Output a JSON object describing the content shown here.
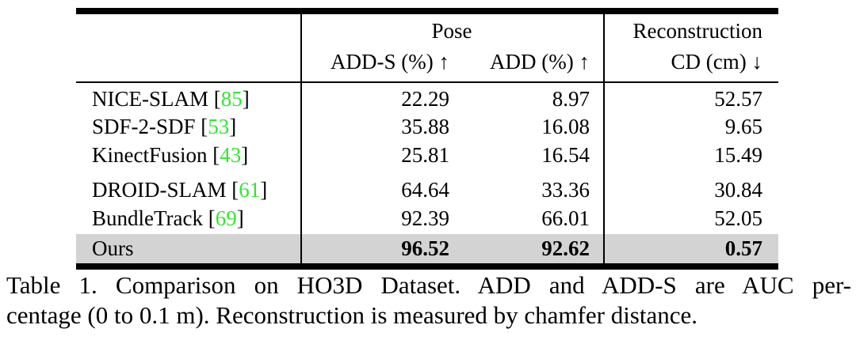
{
  "table": {
    "header": {
      "group_pose": "Pose",
      "group_recon": "Reconstruction",
      "col_adds": "ADD-S (%) ↑",
      "col_add": "ADD (%) ↑",
      "col_cd": "CD (cm) ↓"
    },
    "rows": [
      {
        "method": "NICE-SLAM",
        "ref": "85",
        "adds": "22.29",
        "add": "8.97",
        "cd": "52.57"
      },
      {
        "method": "SDF-2-SDF",
        "ref": "53",
        "adds": "35.88",
        "add": "16.08",
        "cd": "9.65"
      },
      {
        "method": "KinectFusion",
        "ref": "43",
        "adds": "25.81",
        "add": "16.54",
        "cd": "15.49"
      },
      {
        "method": "DROID-SLAM",
        "ref": "61",
        "adds": "64.64",
        "add": "33.36",
        "cd": "30.84"
      },
      {
        "method": "BundleTrack",
        "ref": "69",
        "adds": "92.39",
        "add": "66.01",
        "cd": "52.05"
      }
    ],
    "ours": {
      "method": "Ours",
      "adds": "96.52",
      "add": "92.62",
      "cd": "0.57"
    }
  },
  "caption": {
    "line1": "Table 1. Comparison on HO3D Dataset. ADD and ADD-S are AUC per-",
    "line2": "centage (0 to 0.1 m). Reconstruction is measured by chamfer distance."
  },
  "colors": {
    "citation": "#2ee82e",
    "highlight_row": "#d3d3d3"
  }
}
